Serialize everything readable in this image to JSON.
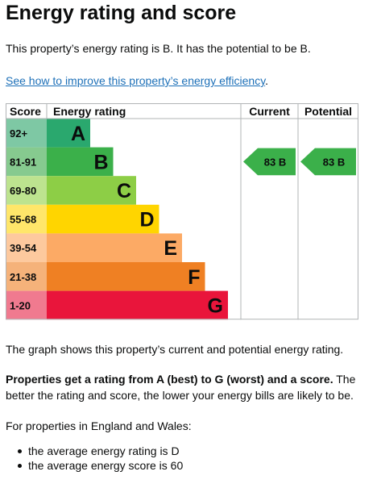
{
  "page_title": "Energy rating and score",
  "intro": "This property’s energy rating is B. It has the potential to be B.",
  "improve_link": "See how to improve this property’s energy efficiency",
  "improve_link_suffix": ".",
  "table": {
    "headers": {
      "score": "Score",
      "rating": "Energy rating",
      "current": "Current",
      "potential": "Potential"
    },
    "bands": [
      {
        "score": "92+",
        "letter": "A",
        "color": "#2aa86e",
        "score_color": "#7ec8a4",
        "text_color": "#0b0c0c"
      },
      {
        "score": "81-91",
        "letter": "B",
        "color": "#3bb04a",
        "score_color": "#86ca8f",
        "text_color": "#0b0c0c"
      },
      {
        "score": "69-80",
        "letter": "C",
        "color": "#8dce46",
        "score_color": "#bde38f",
        "text_color": "#0b0c0c"
      },
      {
        "score": "55-68",
        "letter": "D",
        "color": "#ffd500",
        "score_color": "#ffe66a",
        "text_color": "#0b0c0c"
      },
      {
        "score": "39-54",
        "letter": "E",
        "color": "#fcaa65",
        "score_color": "#fdc99e",
        "text_color": "#0b0c0c"
      },
      {
        "score": "21-38",
        "letter": "F",
        "color": "#ef8023",
        "score_color": "#f5b27a",
        "text_color": "#0b0c0c"
      },
      {
        "score": "1-20",
        "letter": "G",
        "color": "#e9153b",
        "score_color": "#f07a8f",
        "text_color": "#0b0c0c"
      }
    ],
    "current": {
      "score": "83",
      "letter": "B",
      "band_index": 1,
      "color": "#3bb04a"
    },
    "potential": {
      "score": "83",
      "letter": "B",
      "band_index": 1,
      "color": "#3bb04a"
    }
  },
  "graph_note": "The graph shows this property’s current and potential energy rating.",
  "props_bold": "Properties get a rating from A (best) to G (worst) and a score.",
  "props_rest": " The better the rating and score, the lower your energy bills are likely to be.",
  "ew_intro": "For properties in England and Wales:",
  "bullets": [
    "the average energy rating is D",
    "the average energy score is 60"
  ]
}
